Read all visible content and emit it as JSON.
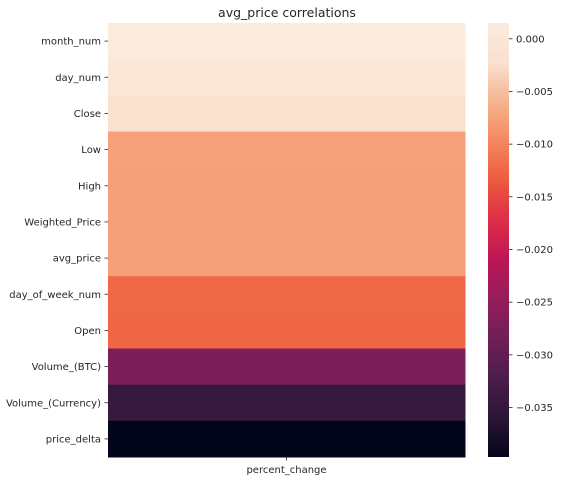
{
  "chart_data": {
    "type": "heatmap",
    "title": "avg_price correlations",
    "columns": [
      "percent_change"
    ],
    "rows": [
      "month_num",
      "day_num",
      "Close",
      "Low",
      "High",
      "Weighted_Price",
      "avg_price",
      "day_of_week_num",
      "Open",
      "Volume_(BTC)",
      "Volume_(Currency)",
      "price_delta"
    ],
    "values": [
      0.0015,
      0.0002,
      -0.002,
      -0.0075,
      -0.0077,
      -0.0077,
      -0.0077,
      -0.0123,
      -0.0125,
      -0.0273,
      -0.0345,
      -0.0397
    ],
    "colorbar": {
      "min": -0.0397,
      "max": 0.0015,
      "ticks": [
        0.0,
        -0.005,
        -0.01,
        -0.015,
        -0.02,
        -0.025,
        -0.03,
        -0.035
      ],
      "tick_labels": [
        "0.000",
        "−0.005",
        "−0.010",
        "−0.015",
        "−0.020",
        "−0.025",
        "−0.030",
        "−0.035"
      ],
      "colormap": "rocket",
      "stops": [
        "#03051a",
        "#2a1636",
        "#4c1d4b",
        "#701f57",
        "#961c5b",
        "#bd1655",
        "#de2d48",
        "#ed5a3e",
        "#f4875e",
        "#f6b48e",
        "#fae0cf",
        "#faebdd"
      ]
    }
  }
}
